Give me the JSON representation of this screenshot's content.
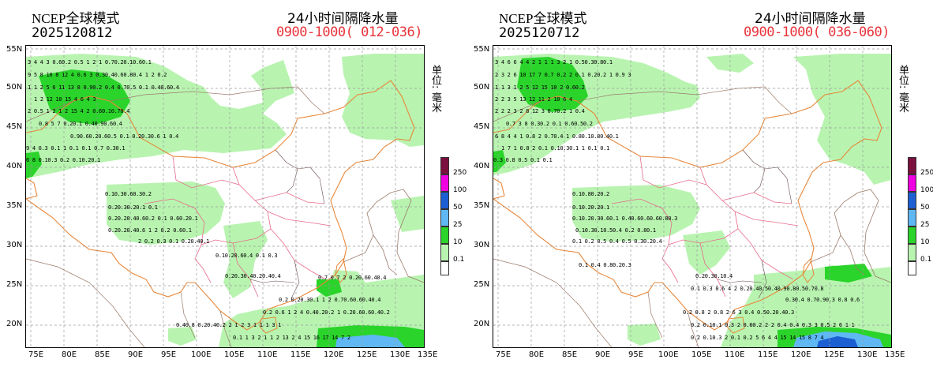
{
  "panels": [
    {
      "model": "NCEP全球模式",
      "run_time": "2025120812",
      "product": "24小时间隔降水量",
      "valid_range": "0900-1000( 012-036)",
      "rows": [
        "3 4 4 3 0.60.2    0.5 1 2 1 0.70.20.10.60.1",
        "9 5 8 10 8 12 4 0.6 3 0.30.40.60.80.4 1 2 0.2",
        "1 1 2 5 6 11 13 8 0.90.2  0.4 0.70.5   0.1 0.40.60.4",
        "1 2 12 10 15 4  6  4  3",
        "2 0.5 1 2 1 2 15 4 2 0.60.10.70.4",
        "0.8 5 7 0.20.1  0.40.90.60.4",
        "0.90.60.20.60.5  0.1  0.20.30.6 1 0.4",
        "9 4 0.3 0.1 1 0.1  0.1  0.7  0.30.1",
        "6 8 0.10.3   0.2  0.10.20.1",
        "0.10.30.60.30.2",
        "0.20.30.20.1  0.1",
        "0.20.20.40.60.2 0.1 0.60.20.1",
        "0.20.20.40.6 1 2 0.2 0.60.1",
        "2 0.2 0.3 0.1   0.20.40.1",
        "0.10.20.60.4 0.1  0.3",
        "0.20.30.40.20.40.4",
        "0.7 0.7 2  0.20.60.40.4",
        "0.2 0.20.30.1 1 2 0.70.60.60.40.4",
        "0.2 0.6 1 2 4 0.40.20.2 1 0.20.60.60.40.2",
        "0.40.8  0.20.40.2 2 1 2 3 1 1 1 3 1",
        "0.1 1 3 2 1 1 2 13 2 4 15 16 17 14 7 2"
      ]
    },
    {
      "model": "NCEP全球模式",
      "run_time": "2025120712",
      "product": "24小时间隔降水量",
      "valid_range": "0900-1000( 036-060)",
      "rows": [
        "3 4 6 6 4 4 2 1 1 1 3 2 1 0.50.30.80.1",
        "2 3 2 6 10 17 7 0.7 0.2 2 0.1 0.20.2 1 0.9 3",
        "1 1 3 1 2 5 12 15 10 2 0.60.2",
        "2 2 3 5 13 12 11 2 10 6 4",
        "2 2 2 3 2 8 12 3  0.70.2 1 0.4",
        "0.7 3 8 0.30.2  0.1 0.60.50.2",
        "6 8 4 4 1 0.8 2 0.70.4 1 0.80.10.80.40.1",
        "1 7 1 0.8 2  0.1 0.10.30.1 1 0.1 0.1",
        "0.3 0.8 0.5   0.1  0.1",
        "0.10.80.20.2",
        "0.10.20.20.1",
        "0.10.20.30.60.1  0.40.60.60.60.80.3",
        "0.10.30.10.50.4 0.2 0.80.1",
        "0.1 0.2 0.5 0.4  0.5 0.30.20.4",
        "0.1  0.4 0.80.20.3",
        "0.20.30.10.4",
        "0.1  0.3  0.6 4 2 0.20.40.50.40.90.80.50.70.8",
        "0.30.4 0.70.90.3 0.8 0.6",
        "0.2 0.8 2 0.8 2 6 3 0.4 0.50.20.40.3",
        "0.2 0.10.1 0.3 2 0.60.2 2 2 0.4 0.4 0.3 3 0.5 2 6 1 1",
        "0.2  0.10.3 2 0.1 0.2 5 6 4 4 15 14 15 8 7 4"
      ]
    }
  ],
  "axes": {
    "lat_labels": [
      "55N",
      "50N",
      "45N",
      "40N",
      "35N",
      "30N",
      "25N",
      "20N"
    ],
    "lon_labels": [
      "75E",
      "80E",
      "85E",
      "90E",
      "95E",
      "100E",
      "105E",
      "110E",
      "115E",
      "120E",
      "125E",
      "130E",
      "135E"
    ]
  },
  "unit": "单位: 毫米",
  "legend": [
    {
      "value": "250",
      "color": "#7b0f3d"
    },
    {
      "value": "100",
      "color": "#f000e0"
    },
    {
      "value": "50",
      "color": "#1c5fd2"
    },
    {
      "value": "25",
      "color": "#5fb8f4"
    },
    {
      "value": "10",
      "color": "#2ad42a"
    },
    {
      "value": "0.1",
      "color": "#b8f4b0"
    }
  ],
  "colors": {
    "light_rain": "#b8f4b0",
    "moderate_rain": "#2ad42a",
    "heavy_rain": "#5fb8f4",
    "storm": "#1c5fd2",
    "country_border": "#e8873a",
    "province_border": "#e86a8a",
    "neighbor_border": "#9a7a6a",
    "grid": "#9a9a9a"
  }
}
